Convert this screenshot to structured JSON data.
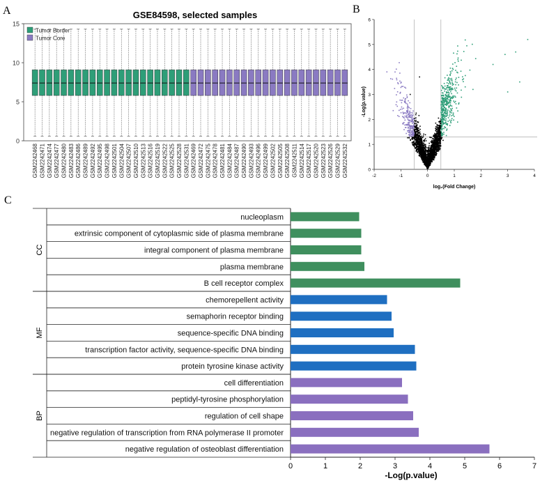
{
  "panel_labels": {
    "a": "A",
    "b": "B",
    "c": "C"
  },
  "chart_data": [
    {
      "type": "box",
      "title": "GSE84598, selected samples",
      "ylim": [
        0,
        15
      ],
      "yticks": [
        0,
        5,
        10,
        15
      ],
      "legend_position": "top-left",
      "legend": [
        {
          "name": "Tumor Border",
          "color": "#2e9e78"
        },
        {
          "name": "Tumor Core",
          "color": "#8a7ac2"
        }
      ],
      "categories": [
        "GSM2242468",
        "GSM2242471",
        "GSM2242474",
        "GSM2242477",
        "GSM2242480",
        "GSM2242483",
        "GSM2242486",
        "GSM2242489",
        "GSM2242492",
        "GSM2242495",
        "GSM2242498",
        "GSM2242501",
        "GSM2242504",
        "GSM2242507",
        "GSM2242510",
        "GSM2242513",
        "GSM2242516",
        "GSM2242519",
        "GSM2242522",
        "GSM2242525",
        "GSM2242528",
        "GSM2242531",
        "GSM2242469",
        "GSM2242472",
        "GSM2242475",
        "GSM2242478",
        "GSM2242481",
        "GSM2242484",
        "GSM2242487",
        "GSM2242490",
        "GSM2242493",
        "GSM2242496",
        "GSM2242499",
        "GSM2242502",
        "GSM2242505",
        "GSM2242508",
        "GSM2242511",
        "GSM2242514",
        "GSM2242517",
        "GSM2242520",
        "GSM2242523",
        "GSM2242526",
        "GSM2242529",
        "GSM2242532"
      ],
      "groups": [
        0,
        0,
        0,
        0,
        0,
        0,
        0,
        0,
        0,
        0,
        0,
        0,
        0,
        0,
        0,
        0,
        0,
        0,
        0,
        0,
        0,
        0,
        1,
        1,
        1,
        1,
        1,
        1,
        1,
        1,
        1,
        1,
        1,
        1,
        1,
        1,
        1,
        1,
        1,
        1,
        1,
        1,
        1,
        1
      ],
      "stats": {
        "whisker_low": 0.6,
        "q1": 5.8,
        "median": 7.4,
        "q3": 9.1,
        "whisker_high": 14.3
      }
    },
    {
      "type": "scatter",
      "subtype": "volcano",
      "xlabel": "log₂(Fold Change)",
      "ylabel": "-Log(p.value)",
      "xlim": [
        -2,
        4
      ],
      "ylim": [
        0,
        6
      ],
      "xticks": [
        -2,
        -1,
        0,
        1,
        2,
        3,
        4
      ],
      "yticks": [
        0,
        1,
        2,
        3,
        4,
        5,
        6
      ],
      "thresholds": {
        "x": [
          -0.5,
          0.5
        ],
        "y": 1.3
      },
      "colors": {
        "up": "#2e9e78",
        "down": "#8a7ac2",
        "ns": "#000000"
      }
    },
    {
      "type": "bar",
      "orientation": "horizontal",
      "xlabel": "-Log(p.value)",
      "xlim": [
        0,
        7
      ],
      "xticks": [
        0,
        1,
        2,
        3,
        4,
        5,
        6,
        7
      ],
      "groups": [
        {
          "name": "CC",
          "color": "#3f8f5e",
          "categories": [
            "nucleoplasm",
            "extrinsic component of cytoplasmic side of plasma membrane",
            "integral component of plasma membrane",
            "plasma membrane",
            "B cell receptor complex"
          ],
          "values": [
            1.97,
            2.03,
            2.03,
            2.12,
            4.87
          ]
        },
        {
          "name": "MF",
          "color": "#1f6fc1",
          "categories": [
            "chemorepellent activity",
            "semaphorin receptor binding",
            "sequence-specific DNA binding",
            "transcription factor activity, sequence-specific DNA binding",
            "protein tyrosine kinase activity"
          ],
          "values": [
            2.77,
            2.9,
            2.96,
            3.57,
            3.61
          ]
        },
        {
          "name": "BP",
          "color": "#8a6fbf",
          "categories": [
            "cell differentiation",
            "peptidyl-tyrosine phosphorylation",
            "regulation of cell shape",
            "negative regulation of transcription from RNA polymerase II promoter",
            "negative regulation of osteoblast differentiation"
          ],
          "values": [
            3.2,
            3.37,
            3.52,
            3.68,
            5.71
          ]
        }
      ]
    }
  ]
}
